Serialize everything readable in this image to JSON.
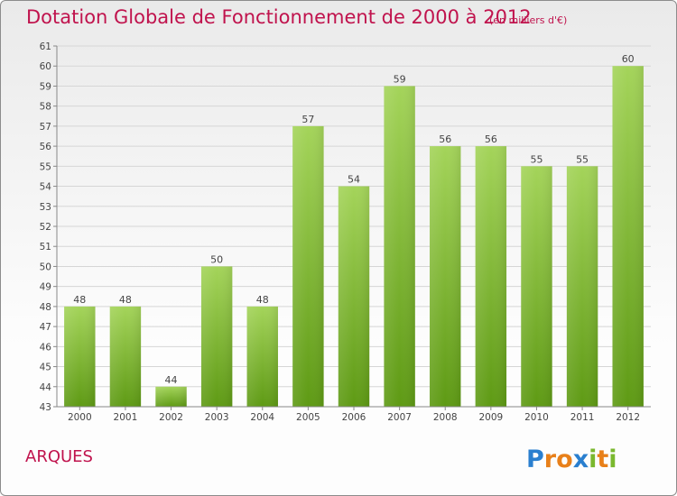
{
  "header": {
    "title": "Dotation Globale de Fonctionnement de 2000 à 2012",
    "subtitle": "(en milliers d'€)"
  },
  "commune": "ARQUES",
  "logo": {
    "text": "Proxiti",
    "letters": [
      "P",
      "r",
      "o",
      "x",
      "i",
      "t",
      "i"
    ],
    "colors": [
      "#2a7fcf",
      "#e8801a",
      "#e8801a",
      "#2a7fcf",
      "#7ab82e",
      "#e8801a",
      "#7ab82e"
    ]
  },
  "colors": {
    "title": "#c0134d",
    "bar_top": "#a4d45a",
    "bar_bottom": "#5e9a14",
    "grid": "#d6d6d6"
  },
  "chart_data": {
    "type": "bar",
    "categories": [
      "2000",
      "2001",
      "2002",
      "2003",
      "2004",
      "2005",
      "2006",
      "2007",
      "2008",
      "2009",
      "2010",
      "2011",
      "2012"
    ],
    "values": [
      48,
      48,
      44,
      50,
      48,
      57,
      54,
      59,
      56,
      56,
      55,
      55,
      60
    ],
    "title": "Dotation Globale de Fonctionnement de 2000 à 2012",
    "subtitle": "(en milliers d'€)",
    "ylim": [
      43,
      61
    ],
    "yticks": [
      43,
      44,
      45,
      46,
      47,
      48,
      49,
      50,
      51,
      52,
      53,
      54,
      55,
      56,
      57,
      58,
      59,
      60,
      61
    ],
    "grid": true,
    "legend": "none"
  }
}
